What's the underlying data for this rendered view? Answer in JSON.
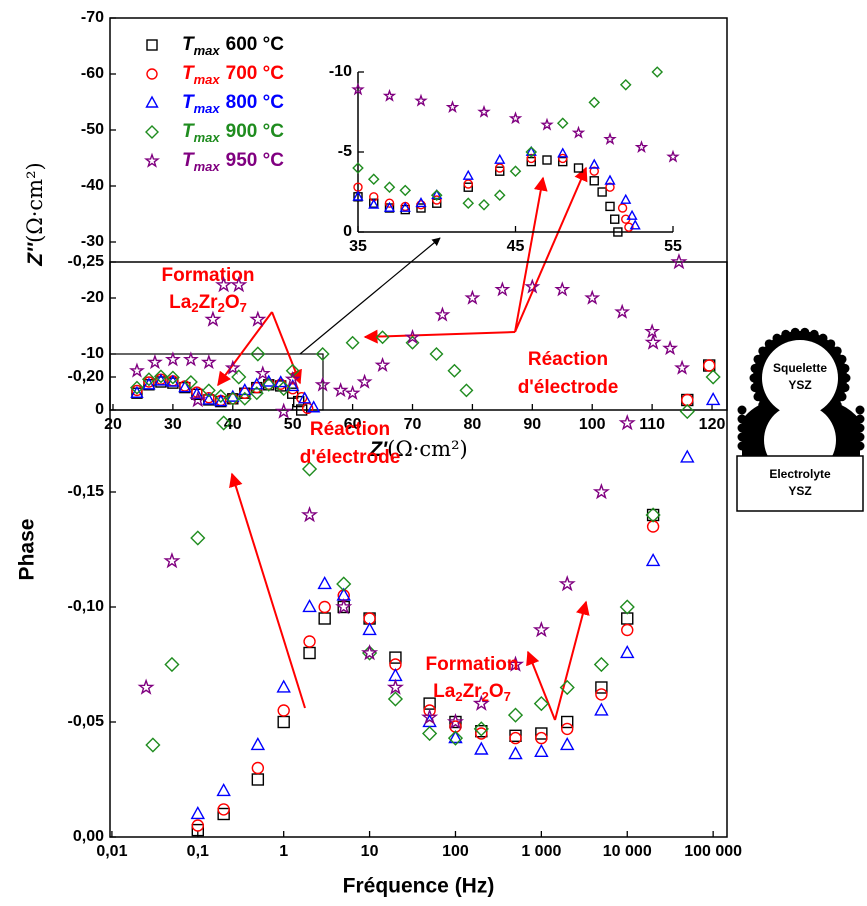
{
  "chart_data": [
    {
      "type": "scatter",
      "xlabel_symbol": "Z'",
      "xlabel_unit": "(Ω·cm²)",
      "ylabel_symbol": "Z''",
      "ylabel_unit": "(Ω·cm²)",
      "legend_symbol": "T",
      "legend_subscript": "max",
      "legend": "upper left",
      "xlim": [
        19.5,
        122.5
      ],
      "xticks": [
        20,
        30,
        40,
        50,
        60,
        70,
        80,
        90,
        100,
        110,
        120
      ],
      "ylim": [
        0,
        -70
      ],
      "yticks": [
        0,
        -10,
        -20,
        -30,
        -40,
        -50,
        -60,
        -70
      ],
      "series": [
        {
          "name": "600 °C",
          "color": "#000000",
          "marker": "square",
          "x": [
            24,
            26,
            28,
            30,
            32,
            34,
            36,
            38,
            40,
            42,
            44,
            46,
            48,
            50,
            51,
            51.5
          ],
          "values": [
            -3,
            -4.5,
            -5,
            -4.8,
            -4,
            -2.8,
            -1.8,
            -1.5,
            -2,
            -3,
            -4,
            -4.5,
            -4.3,
            -3,
            -1.5,
            0
          ]
        },
        {
          "name": "700 °C",
          "color": "#ff0000",
          "marker": "circle",
          "x": [
            24,
            26,
            28,
            30,
            32,
            34,
            36,
            38,
            40,
            42,
            44,
            46,
            48,
            50,
            51.5,
            52.5
          ],
          "values": [
            -3.5,
            -5,
            -5.5,
            -5.2,
            -4.3,
            -3.2,
            -2.2,
            -1.7,
            -2,
            -3,
            -4,
            -4.6,
            -4.6,
            -3.8,
            -2.2,
            -0.3
          ]
        },
        {
          "name": "800 °C",
          "color": "#0000ff",
          "marker": "triangle",
          "x": [
            24,
            26,
            28,
            30,
            32,
            34,
            36,
            38,
            40,
            42,
            44,
            46,
            48,
            50,
            52,
            53.5
          ],
          "values": [
            -3,
            -4.5,
            -5.2,
            -5,
            -4,
            -2.8,
            -1.8,
            -1.5,
            -2.3,
            -3.5,
            -4.5,
            -5,
            -4.9,
            -4.2,
            -2,
            -0.4
          ]
        },
        {
          "name": "900 °C",
          "color": "#1f8c1f",
          "marker": "diamond",
          "x": [
            24,
            26,
            28,
            30,
            33,
            36,
            38,
            40,
            42,
            44,
            46,
            50,
            55,
            60,
            65,
            70,
            74,
            77,
            79
          ],
          "values": [
            -4,
            -5.5,
            -6,
            -5.8,
            -5,
            -3.5,
            -2.5,
            -2,
            -2,
            -3,
            -4.5,
            -7,
            -10,
            -12,
            -13,
            -12,
            -10,
            -7,
            -3.5
          ]
        },
        {
          "name": "950 °C",
          "color": "#800080",
          "marker": "star",
          "x": [
            24,
            27,
            30,
            33,
            36,
            40,
            45,
            50,
            55,
            58,
            60,
            62,
            65,
            70,
            75,
            80,
            85,
            90,
            95,
            100,
            105,
            110,
            113,
            115
          ],
          "values": [
            -7,
            -8.5,
            -9,
            -9,
            -8.5,
            -7.5,
            -6.5,
            -5.5,
            -4.5,
            -3.5,
            -3,
            -5,
            -8,
            -13,
            -17,
            -20,
            -21.5,
            -22,
            -21.5,
            -20,
            -17.5,
            -14,
            -11,
            -7.5
          ]
        }
      ],
      "annotations": [
        {
          "lines": [
            "Formation"
          ],
          "formula": [
            "La",
            "2",
            "Zr",
            "2",
            "O",
            "7"
          ]
        },
        {
          "lines": [
            "Réaction",
            "d'électrode"
          ]
        }
      ]
    },
    {
      "type": "scatter",
      "xlim": [
        35,
        55
      ],
      "xticks": [
        35,
        45,
        55
      ],
      "ylim": [
        0,
        -10
      ],
      "yticks": [
        0,
        -5,
        -10
      ],
      "series": [
        {
          "color": "#000000",
          "marker": "square",
          "x": [
            35,
            36,
            37,
            38,
            39,
            40,
            42,
            44,
            46,
            47,
            48,
            49,
            50,
            50.5,
            51,
            51.3,
            51.5
          ],
          "values": [
            -2.2,
            -1.8,
            -1.5,
            -1.4,
            -1.5,
            -1.8,
            -2.8,
            -3.8,
            -4.4,
            -4.5,
            -4.4,
            -4,
            -3.2,
            -2.5,
            -1.6,
            -0.8,
            0
          ]
        },
        {
          "color": "#ff0000",
          "marker": "circle",
          "x": [
            35,
            36,
            37,
            38,
            39,
            40,
            42,
            44,
            46,
            48,
            50,
            51,
            51.8,
            52,
            52.2
          ],
          "values": [
            -2.8,
            -2.2,
            -1.8,
            -1.6,
            -1.7,
            -2,
            -3,
            -4,
            -4.6,
            -4.6,
            -3.8,
            -2.8,
            -1.5,
            -0.8,
            -0.3
          ]
        },
        {
          "color": "#0000ff",
          "marker": "triangle",
          "x": [
            35,
            36,
            37,
            38,
            39,
            40,
            42,
            44,
            46,
            48,
            50,
            51,
            52,
            52.4,
            52.6
          ],
          "values": [
            -2.2,
            -1.7,
            -1.5,
            -1.5,
            -1.8,
            -2.3,
            -3.5,
            -4.5,
            -5,
            -4.9,
            -4.2,
            -3.2,
            -2,
            -1,
            -0.4
          ]
        },
        {
          "color": "#1f8c1f",
          "marker": "diamond",
          "x": [
            35,
            36,
            37,
            38,
            40,
            42,
            43,
            44,
            45,
            46,
            48,
            50,
            52,
            54
          ],
          "values": [
            -4,
            -3.3,
            -2.8,
            -2.6,
            -2.3,
            -1.8,
            -1.7,
            -2.3,
            -3.8,
            -5,
            -6.8,
            -8.1,
            -9.2,
            -10
          ]
        },
        {
          "color": "#800080",
          "marker": "star",
          "x": [
            35,
            37,
            39,
            41,
            43,
            45,
            47,
            49,
            51,
            53,
            55
          ],
          "values": [
            -8.9,
            -8.5,
            -8.2,
            -7.8,
            -7.5,
            -7.1,
            -6.7,
            -6.2,
            -5.8,
            -5.3,
            -4.7
          ]
        }
      ]
    },
    {
      "type": "scatter",
      "xscale": "log",
      "xlabel": "Fréquence (Hz)",
      "ylabel": "Phase",
      "xlim": [
        0.0095,
        145000
      ],
      "xticks": [
        {
          "value": 0.01,
          "label": "0,01"
        },
        {
          "value": 0.1,
          "label": "0,1"
        },
        1,
        10,
        100,
        {
          "value": 1000,
          "label": "1 000"
        },
        {
          "value": 10000,
          "label": "10 000"
        },
        {
          "value": 100000,
          "label": "100 000"
        }
      ],
      "ylim": [
        0,
        -0.25
      ],
      "yticks": [
        {
          "value": 0,
          "label": "0,00"
        },
        {
          "value": -0.05,
          "label": "-0,05"
        },
        {
          "value": -0.1,
          "label": "-0,10"
        },
        {
          "value": -0.15,
          "label": "-0,15"
        },
        {
          "value": -0.2,
          "label": "-0,20"
        },
        {
          "value": -0.25,
          "label": "-0,25"
        }
      ],
      "series": [
        {
          "color": "#000000",
          "marker": "square",
          "x": [
            0.1,
            0.2,
            0.5,
            1,
            2,
            3,
            5,
            10,
            20,
            50,
            100,
            200,
            500,
            1000,
            2000,
            5000,
            10000,
            20000,
            50000,
            90000
          ],
          "values": [
            -0.003,
            -0.01,
            -0.025,
            -0.05,
            -0.08,
            -0.095,
            -0.1,
            -0.095,
            -0.078,
            -0.058,
            -0.05,
            -0.046,
            -0.044,
            -0.045,
            -0.05,
            -0.065,
            -0.095,
            -0.14,
            -0.19,
            -0.205
          ]
        },
        {
          "color": "#ff0000",
          "marker": "circle",
          "x": [
            0.1,
            0.2,
            0.5,
            1,
            2,
            3,
            5,
            10,
            20,
            50,
            100,
            200,
            500,
            1000,
            2000,
            5000,
            10000,
            20000,
            50000,
            90000
          ],
          "values": [
            -0.005,
            -0.012,
            -0.03,
            -0.055,
            -0.085,
            -0.1,
            -0.105,
            -0.095,
            -0.075,
            -0.055,
            -0.048,
            -0.045,
            -0.043,
            -0.043,
            -0.047,
            -0.062,
            -0.09,
            -0.135,
            -0.19,
            -0.205
          ]
        },
        {
          "color": "#0000ff",
          "marker": "triangle",
          "x": [
            0.1,
            0.2,
            0.5,
            1,
            2,
            3,
            5,
            10,
            20,
            50,
            100,
            200,
            500,
            1000,
            2000,
            5000,
            10000,
            20000,
            50000,
            100000
          ],
          "values": [
            -0.01,
            -0.02,
            -0.04,
            -0.065,
            -0.1,
            -0.11,
            -0.105,
            -0.09,
            -0.07,
            -0.05,
            -0.043,
            -0.038,
            -0.036,
            -0.037,
            -0.04,
            -0.055,
            -0.08,
            -0.12,
            -0.165,
            -0.19
          ]
        },
        {
          "color": "#1f8c1f",
          "marker": "diamond",
          "x": [
            0.03,
            0.05,
            0.1,
            0.2,
            0.3,
            0.5,
            1,
            2,
            5,
            10,
            20,
            50,
            100,
            200,
            500,
            1000,
            2000,
            5000,
            10000,
            20000,
            50000,
            100000
          ],
          "values": [
            -0.04,
            -0.075,
            -0.13,
            -0.18,
            -0.2,
            -0.21,
            -0.195,
            -0.16,
            -0.11,
            -0.08,
            -0.06,
            -0.045,
            -0.043,
            -0.047,
            -0.053,
            -0.058,
            -0.065,
            -0.075,
            -0.1,
            -0.14,
            -0.185,
            -0.2
          ]
        },
        {
          "color": "#800080",
          "marker": "star",
          "x": [
            0.025,
            0.05,
            0.1,
            0.15,
            0.2,
            0.3,
            0.5,
            1,
            2,
            5,
            10,
            20,
            50,
            100,
            200,
            500,
            1000,
            2000,
            5000,
            10000,
            20000,
            40000
          ],
          "values": [
            -0.065,
            -0.12,
            -0.19,
            -0.225,
            -0.24,
            -0.24,
            -0.225,
            -0.185,
            -0.14,
            -0.1,
            -0.08,
            -0.065,
            -0.052,
            -0.05,
            -0.058,
            -0.075,
            -0.09,
            -0.11,
            -0.15,
            -0.18,
            -0.215,
            -0.25
          ]
        }
      ],
      "annotations": [
        {
          "lines": [
            "Réaction",
            "d'électrode"
          ]
        },
        {
          "lines": [
            "Formation"
          ],
          "formula": [
            "La",
            "2",
            "Zr",
            "2",
            "O",
            "7"
          ]
        }
      ]
    }
  ],
  "schematic": {
    "skeleton": [
      "Squelette",
      "YSZ"
    ],
    "electrolyte": [
      "Electrolyte",
      "YSZ"
    ]
  }
}
